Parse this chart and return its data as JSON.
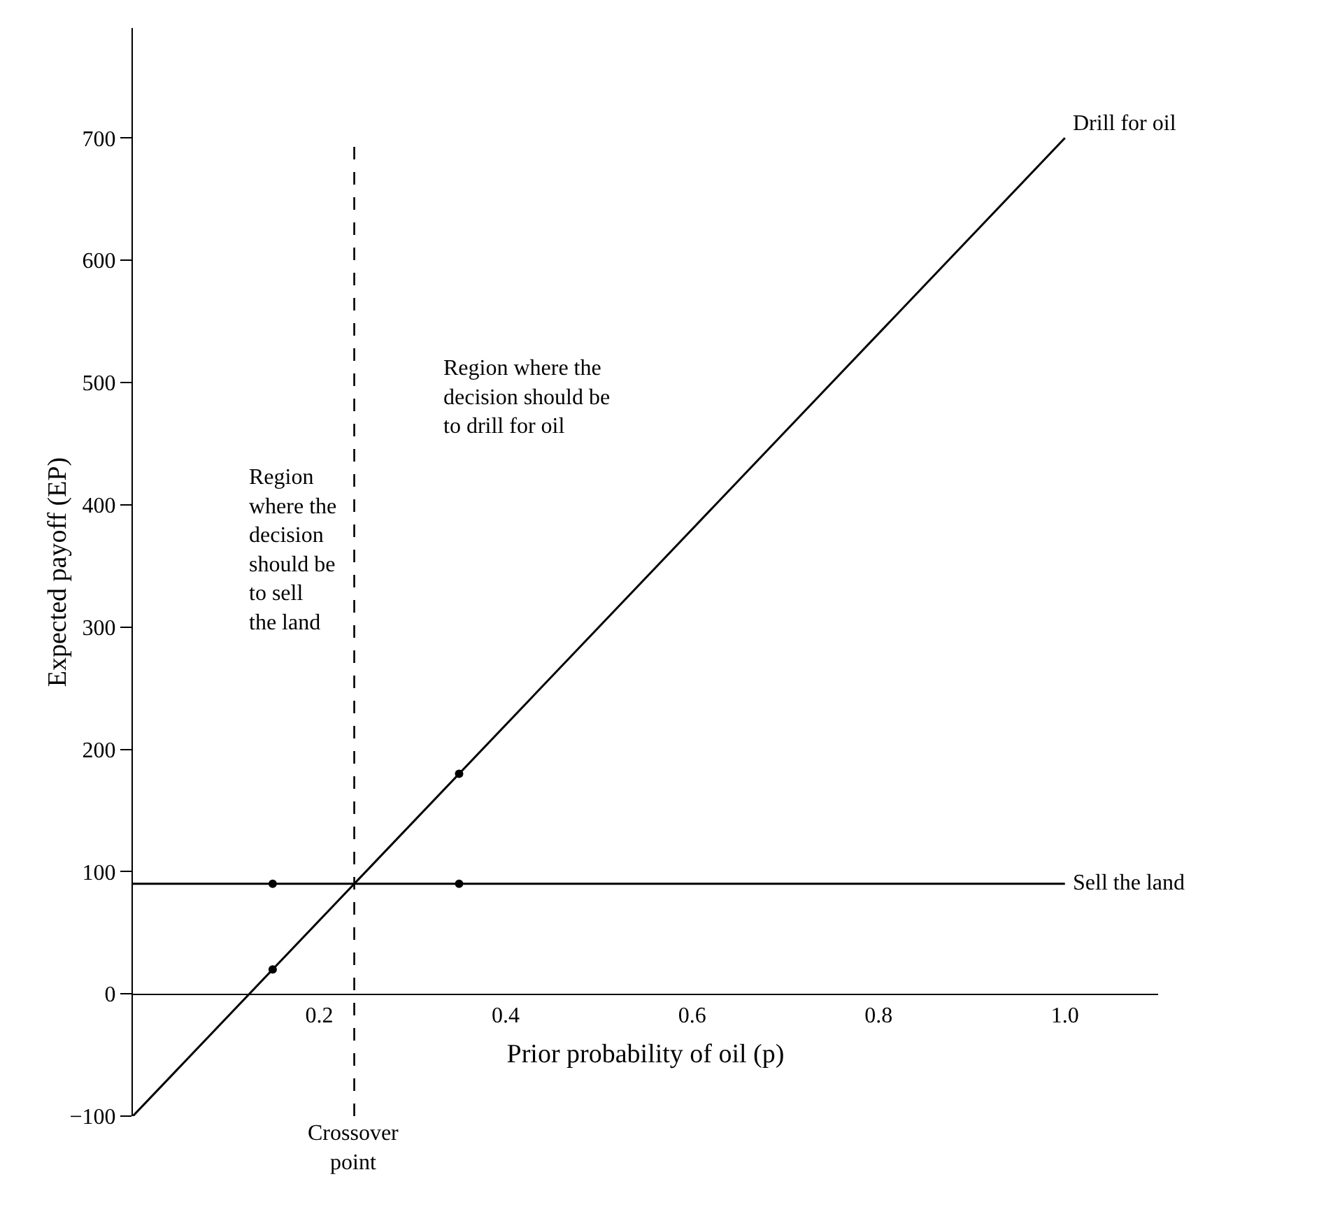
{
  "chart_data": {
    "type": "line",
    "xlabel": "Prior probability of oil (p)",
    "ylabel": "Expected payoff (EP)",
    "xlim": [
      0,
      1.1
    ],
    "ylim": [
      -100,
      790
    ],
    "xticks": [
      0.2,
      0.4,
      0.6,
      0.8,
      {
        "value": 1.0,
        "label": "1.0"
      }
    ],
    "yticks": [
      {
        "value": -100,
        "label": "−100"
      },
      0,
      100,
      200,
      300,
      400,
      500,
      600,
      700
    ],
    "series": [
      {
        "name": "Drill for oil",
        "color": "#000000",
        "x": [
          0,
          1
        ],
        "values": [
          -100,
          700
        ]
      },
      {
        "name": "Sell the land",
        "color": "#000000",
        "x": [
          0,
          1
        ],
        "values": [
          90,
          90
        ]
      },
      {
        "type": "scatter",
        "color": "#000000",
        "x": [
          0.15,
          0.35,
          0.15,
          0.35
        ],
        "values": [
          20,
          180,
          90,
          90
        ]
      }
    ],
    "ref_lines": [
      {
        "axis": "x",
        "value": 0.2375,
        "label": "Crossover\npoint",
        "line_style": "dashed",
        "color": "#000000"
      }
    ],
    "annotations": [
      "Region\nwhere the\ndecision\nshould be\nto sell\nthe land",
      "Region where the\ndecision should be\nto drill for oil"
    ],
    "grid": false,
    "legend": false,
    "line_style": "solid"
  }
}
